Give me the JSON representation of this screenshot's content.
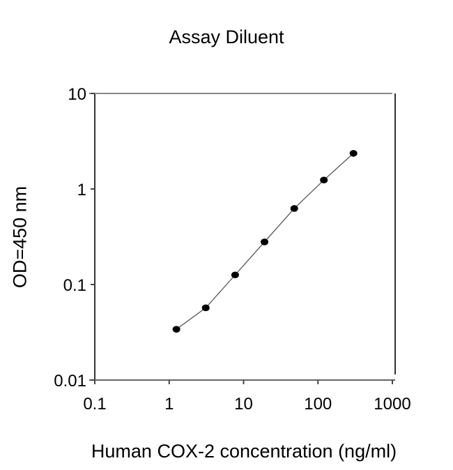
{
  "chart_data": {
    "type": "scatter",
    "title": "Assay Diluent",
    "xlabel": "Human COX-2 concentration (ng/ml)",
    "ylabel": "OD=450 nm",
    "xscale": "log",
    "yscale": "log",
    "xlim": [
      0.1,
      1000
    ],
    "ylim": [
      0.01,
      10
    ],
    "x_ticks": [
      "0.1",
      "1",
      "10",
      "100",
      "1000"
    ],
    "y_ticks": [
      "0.01",
      "0.1",
      "1",
      "10"
    ],
    "grid": false,
    "legend": null,
    "series": [
      {
        "name": "Assay Diluent",
        "marker": "filled-circle",
        "line": "fit",
        "x": [
          1.25,
          3.1,
          7.7,
          19.1,
          48,
          120,
          300
        ],
        "y": [
          0.034,
          0.057,
          0.126,
          0.279,
          0.625,
          1.24,
          2.36
        ]
      }
    ],
    "colors": {
      "marker": "#000000",
      "line": "#555555",
      "axis": "#333333"
    }
  }
}
